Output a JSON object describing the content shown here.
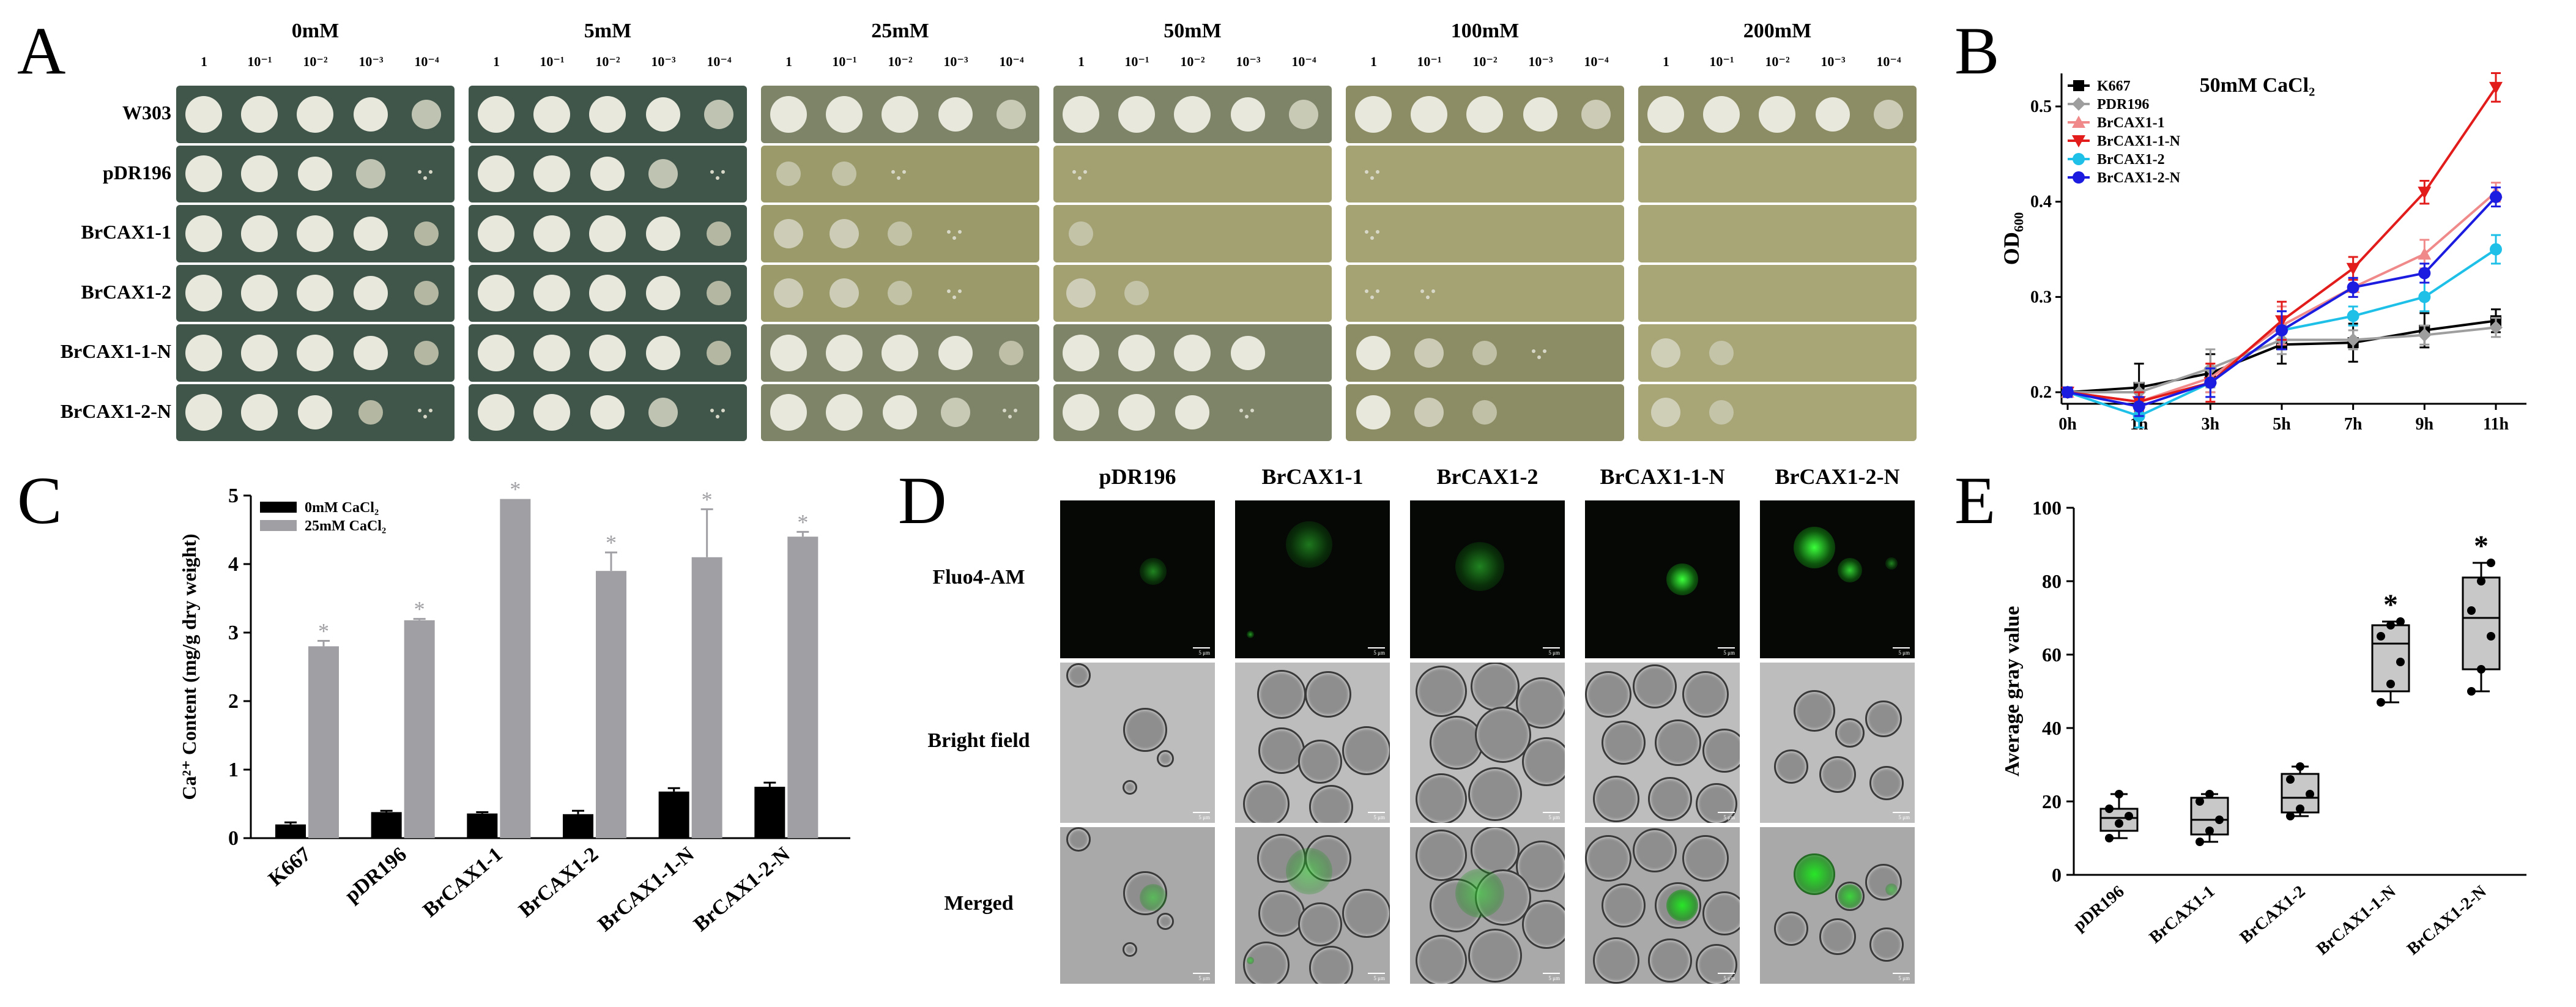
{
  "panelA": {
    "letter": "A",
    "concentrations": [
      "0mM",
      "5mM",
      "25mM",
      "50mM",
      "100mM",
      "200mM"
    ],
    "dilutions": [
      "1",
      "10⁻¹",
      "10⁻²",
      "10⁻³",
      "10⁻⁴"
    ],
    "strains": [
      "W303",
      "pDR196",
      "BrCAX1-1",
      "BrCAX1-2",
      "BrCAX1-1-N",
      "BrCAX1-2-N"
    ],
    "growth": [
      [
        [
          5,
          5,
          5,
          4,
          3
        ],
        [
          5,
          5,
          5,
          4,
          3
        ],
        [
          5,
          5,
          5,
          4,
          3
        ],
        [
          5,
          5,
          5,
          4,
          3
        ],
        [
          5,
          5,
          5,
          4,
          3
        ],
        [
          5,
          5,
          5,
          4,
          3
        ]
      ],
      [
        [
          5,
          5,
          4,
          3,
          1
        ],
        [
          5,
          5,
          4,
          3,
          1
        ],
        [
          2,
          2,
          1,
          0,
          0
        ],
        [
          1,
          0,
          0,
          0,
          0
        ],
        [
          1,
          0,
          0,
          0,
          0
        ],
        [
          0,
          0,
          0,
          0,
          0
        ]
      ],
      [
        [
          5,
          5,
          5,
          4,
          2
        ],
        [
          5,
          5,
          5,
          4,
          2
        ],
        [
          3,
          3,
          2,
          1,
          0
        ],
        [
          2,
          0,
          0,
          0,
          0
        ],
        [
          1,
          0,
          0,
          0,
          0
        ],
        [
          0,
          0,
          0,
          0,
          0
        ]
      ],
      [
        [
          5,
          5,
          5,
          4,
          2
        ],
        [
          5,
          5,
          5,
          4,
          2
        ],
        [
          3,
          3,
          2,
          1,
          0
        ],
        [
          3,
          2,
          0,
          0,
          0
        ],
        [
          1,
          1,
          0,
          0,
          0
        ],
        [
          0,
          0,
          0,
          0,
          0
        ]
      ],
      [
        [
          5,
          5,
          5,
          4,
          2
        ],
        [
          5,
          5,
          5,
          4,
          2
        ],
        [
          5,
          5,
          5,
          4,
          2
        ],
        [
          5,
          5,
          5,
          4,
          0
        ],
        [
          4,
          3,
          2,
          1,
          0
        ],
        [
          3,
          2,
          0,
          0,
          0
        ]
      ],
      [
        [
          5,
          5,
          4,
          2,
          1
        ],
        [
          5,
          5,
          4,
          3,
          1
        ],
        [
          5,
          5,
          4,
          3,
          1
        ],
        [
          5,
          5,
          4,
          1,
          0
        ],
        [
          4,
          3,
          2,
          0,
          0
        ],
        [
          3,
          2,
          0,
          0,
          0
        ]
      ]
    ]
  },
  "panelB": {
    "letter": "B"
  },
  "panelC": {
    "letter": "C"
  },
  "panelD": {
    "letter": "D",
    "columns": [
      "pDR196",
      "BrCAX1-1",
      "BrCAX1-2",
      "BrCAX1-1-N",
      "BrCAX1-2-N"
    ],
    "rows": [
      "Fluo4-AM",
      "Bright field",
      "Merged"
    ],
    "scale_label": "5 μm"
  },
  "panelE": {
    "letter": "E"
  },
  "chart_data": [
    {
      "type": "line",
      "title": "50mM CaCl₂",
      "ylabel": "OD₆₀₀",
      "xlabel": "",
      "x": [
        "0h",
        "1h",
        "3h",
        "5h",
        "7h",
        "9h",
        "11h"
      ],
      "ylim": [
        0.2,
        0.5
      ],
      "yticks": [
        "0.2",
        "0.3",
        "0.4",
        "0.5"
      ],
      "legend": "top-left",
      "series": [
        {
          "name": "K667",
          "color": "#000000",
          "marker": "square",
          "values": [
            0.2,
            0.205,
            0.22,
            0.25,
            0.252,
            0.265,
            0.275
          ],
          "err": [
            0.005,
            0.025,
            0.02,
            0.02,
            0.02,
            0.018,
            0.012
          ]
        },
        {
          "name": "PDR196",
          "color": "#9e9e9e",
          "marker": "diamond",
          "values": [
            0.2,
            0.2,
            0.225,
            0.255,
            0.255,
            0.26,
            0.268
          ],
          "err": [
            0.005,
            0.01,
            0.02,
            0.015,
            0.01,
            0.01,
            0.01
          ]
        },
        {
          "name": "BrCAX1-1",
          "color": "#f08a8a",
          "marker": "triangle-up",
          "values": [
            0.2,
            0.19,
            0.215,
            0.27,
            0.31,
            0.345,
            0.41
          ],
          "err": [
            0.005,
            0.01,
            0.015,
            0.02,
            0.01,
            0.015,
            0.01
          ]
        },
        {
          "name": "BrCAX1-1-N",
          "color": "#e21b1b",
          "marker": "triangle-down",
          "values": [
            0.2,
            0.19,
            0.21,
            0.275,
            0.33,
            0.41,
            0.52
          ],
          "err": [
            0.005,
            0.01,
            0.02,
            0.02,
            0.012,
            0.012,
            0.015
          ]
        },
        {
          "name": "BrCAX1-2",
          "color": "#1ec0e8",
          "marker": "circle",
          "values": [
            0.2,
            0.175,
            0.21,
            0.265,
            0.28,
            0.3,
            0.35
          ],
          "err": [
            0.005,
            0.012,
            0.015,
            0.02,
            0.01,
            0.015,
            0.015
          ]
        },
        {
          "name": "BrCAX1-2-N",
          "color": "#1c1ce0",
          "marker": "circle",
          "values": [
            0.2,
            0.185,
            0.21,
            0.265,
            0.31,
            0.325,
            0.405
          ],
          "err": [
            0.005,
            0.01,
            0.015,
            0.02,
            0.01,
            0.01,
            0.01
          ]
        }
      ]
    },
    {
      "type": "bar",
      "title": "",
      "ylabel": "Ca²⁺ Content (mg/g dry weight)",
      "xlabel": "",
      "categories": [
        "K667",
        "pDR196",
        "BrCAX1-1",
        "BrCAX1-2",
        "BrCAX1-1-N",
        "BrCAX1-2-N"
      ],
      "ylim": [
        0,
        5
      ],
      "yticks": [
        "0",
        "1",
        "2",
        "3",
        "4",
        "5"
      ],
      "legend": "top-left",
      "significance_marker": "*",
      "series": [
        {
          "name": "0mM CaCl₂",
          "color": "#000000",
          "values": [
            0.2,
            0.38,
            0.36,
            0.35,
            0.68,
            0.75
          ],
          "err": [
            0.03,
            0.02,
            0.02,
            0.05,
            0.05,
            0.06
          ]
        },
        {
          "name": "25mM CaCl₂",
          "color": "#a0a0a4",
          "values": [
            2.8,
            3.18,
            4.95,
            3.9,
            4.1,
            4.4
          ],
          "err": [
            0.08,
            0.02,
            0.0,
            0.27,
            0.7,
            0.07
          ]
        }
      ]
    },
    {
      "type": "box",
      "title": "",
      "ylabel": "Average gray value",
      "xlabel": "",
      "categories": [
        "pDR196",
        "BrCAX1-1",
        "BrCAX1-2",
        "BrCAX1-1-N",
        "BrCAX1-2-N"
      ],
      "ylim": [
        0,
        100
      ],
      "yticks": [
        "0",
        "20",
        "40",
        "60",
        "80",
        "100"
      ],
      "significance_marker": "*",
      "boxes": [
        {
          "min": 10,
          "q1": 12,
          "median": 15.5,
          "q3": 18,
          "max": 22,
          "points": [
            10,
            14,
            16,
            18,
            22
          ]
        },
        {
          "min": 9,
          "q1": 11,
          "median": 15,
          "q3": 21,
          "max": 22,
          "points": [
            9,
            12,
            15,
            20,
            22
          ]
        },
        {
          "min": 16,
          "q1": 17,
          "median": 21,
          "q3": 27.5,
          "max": 29.5,
          "points": [
            16,
            18,
            22,
            26,
            29.5
          ]
        },
        {
          "min": 47,
          "q1": 50,
          "median": 63,
          "q3": 68,
          "max": 69,
          "points": [
            47,
            52,
            58,
            65,
            68,
            69
          ]
        },
        {
          "min": 50,
          "q1": 56,
          "median": 70,
          "q3": 81,
          "max": 85,
          "points": [
            50,
            56,
            65,
            72,
            80,
            85
          ]
        }
      ],
      "sig": [
        false,
        false,
        false,
        true,
        true
      ]
    }
  ]
}
